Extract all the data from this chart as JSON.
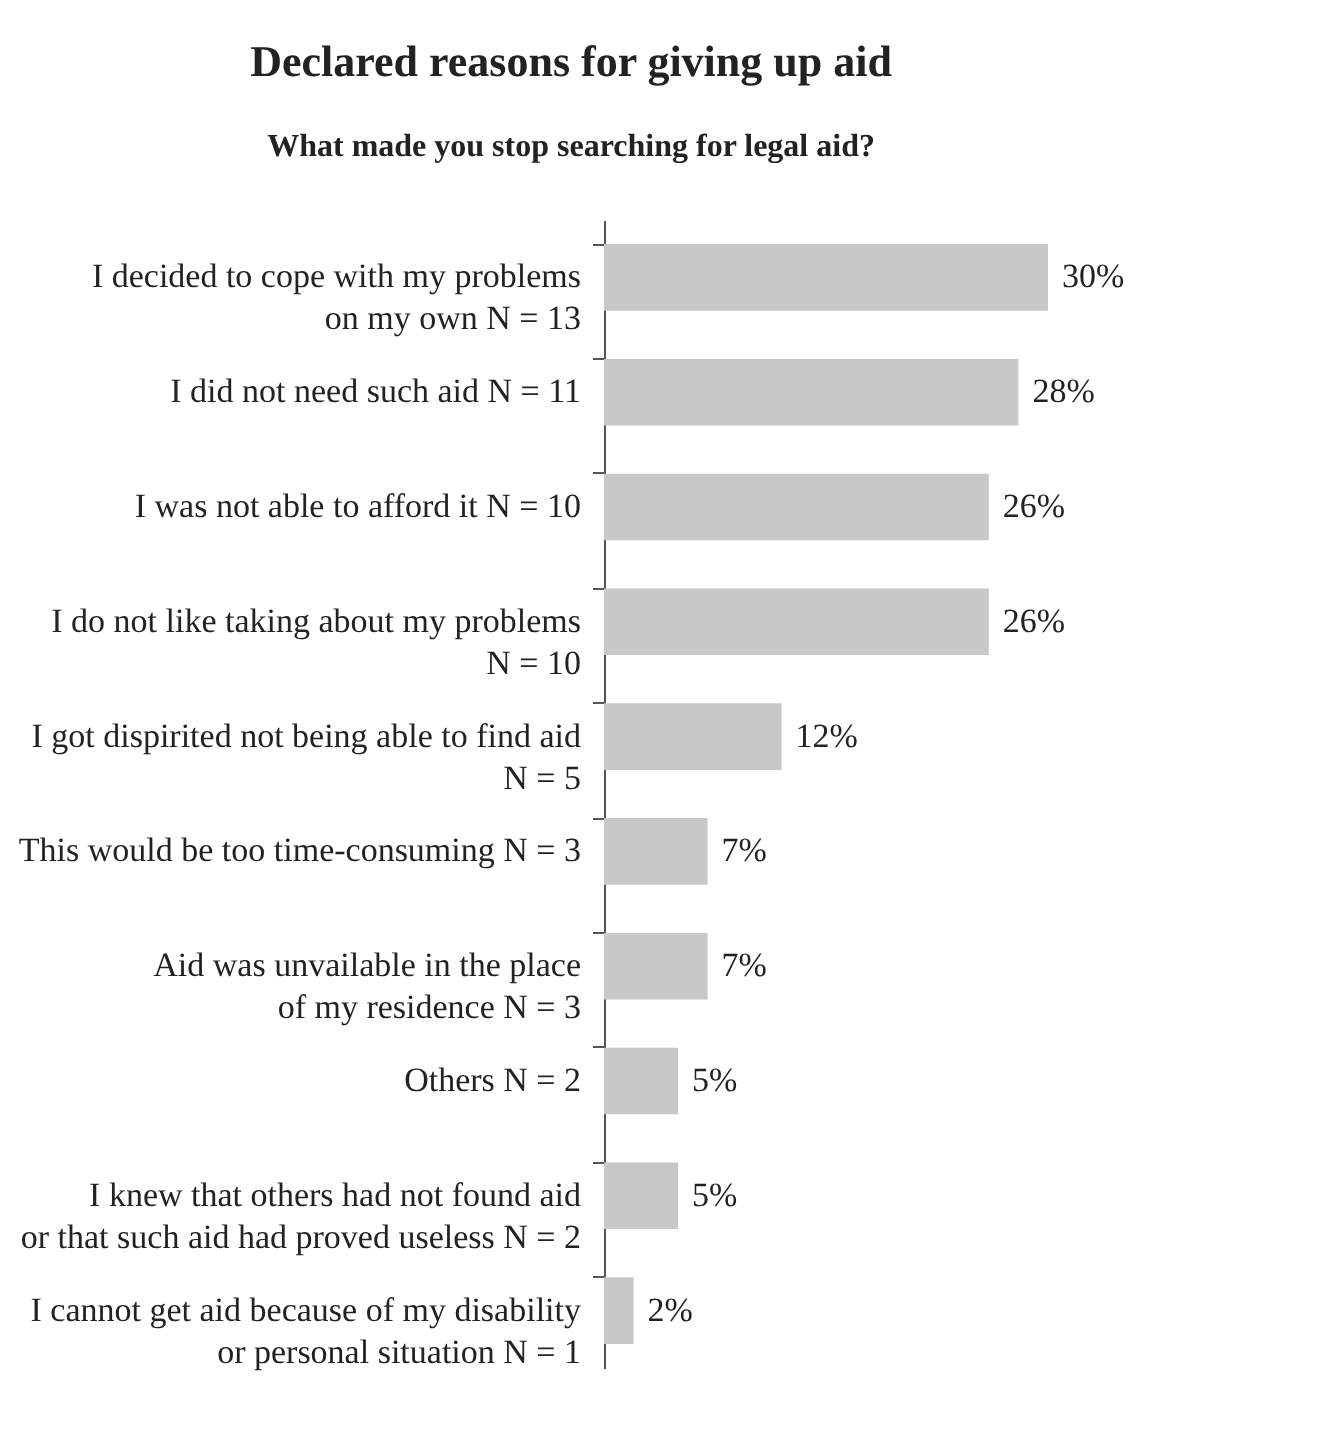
{
  "chart_data": {
    "type": "bar",
    "orientation": "horizontal",
    "title": "Declared reasons for giving up aid",
    "subtitle": "What made you stop searching for legal aid?",
    "categories": [
      "I decided to cope with my problems\non my own N = 13",
      "I did not need such aid N = 11",
      "I was not able to afford it N = 10",
      "I do not like taking about my problems\nN = 10",
      "I got dispirited not being able to find aid\nN = 5",
      "This would be too time-consuming N = 3",
      "Aid was unvailable in the place\nof my residence N = 3",
      "Others N = 2",
      "I knew that others had not found aid\nor that such aid had proved useless N = 2",
      "I cannot get aid because of my disability\nor personal situation N = 1"
    ],
    "values": [
      30,
      28,
      26,
      26,
      12,
      7,
      7,
      5,
      5,
      2
    ],
    "value_labels": [
      "30%",
      "28%",
      "26%",
      "26%",
      "12%",
      "7%",
      "7%",
      "5%",
      "5%",
      "2%"
    ],
    "color": "#c8c8c8",
    "xlim": [
      0,
      30
    ],
    "tick_labels": "y"
  }
}
